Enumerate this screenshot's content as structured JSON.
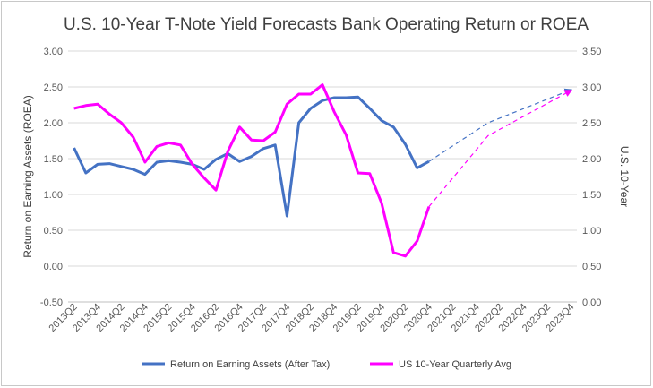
{
  "chart_data": {
    "type": "line",
    "title": "U.S. 10-Year T-Note Yield Forecasts Bank Operating Return or ROEA",
    "ylabel_left": "Return on Earning Assets (ROEA)",
    "ylabel_right": "U.S. 10-Year",
    "ylim_left": [
      -0.5,
      3.0
    ],
    "ylim_right": [
      0.0,
      3.5
    ],
    "yticks_left": [
      "3.00",
      "2.50",
      "2.00",
      "1.50",
      "1.00",
      "0.50",
      "0.00",
      "-0.50"
    ],
    "yticks_right": [
      "3.50",
      "3.00",
      "2.50",
      "2.00",
      "1.50",
      "1.00",
      "0.50",
      "0.00"
    ],
    "ytick_values_left": [
      3.0,
      2.5,
      2.0,
      1.5,
      1.0,
      0.5,
      0.0,
      -0.5
    ],
    "ytick_values_right": [
      3.5,
      3.0,
      2.5,
      2.0,
      1.5,
      1.0,
      0.5,
      0.0
    ],
    "x_labels": [
      "2013Q2",
      "2013Q4",
      "2014Q2",
      "2014Q4",
      "2015Q2",
      "2015Q4",
      "2016Q2",
      "2016Q4",
      "2017Q2",
      "2017Q4",
      "2018Q2",
      "2018Q4",
      "2019Q2",
      "2019Q4",
      "2020Q2",
      "2020Q4",
      "2021Q2",
      "2021Q4",
      "2022Q2",
      "2022Q4",
      "2023Q2",
      "2023Q4"
    ],
    "x_quarters": [
      "2013Q2",
      "2013Q3",
      "2013Q4",
      "2014Q1",
      "2014Q2",
      "2014Q3",
      "2014Q4",
      "2015Q1",
      "2015Q2",
      "2015Q3",
      "2015Q4",
      "2016Q1",
      "2016Q2",
      "2016Q3",
      "2016Q4",
      "2017Q1",
      "2017Q2",
      "2017Q3",
      "2017Q4",
      "2018Q1",
      "2018Q2",
      "2018Q3",
      "2018Q4",
      "2019Q1",
      "2019Q2",
      "2019Q3",
      "2019Q4",
      "2020Q1",
      "2020Q2",
      "2020Q3",
      "2020Q4",
      "2021Q1",
      "2021Q2",
      "2021Q3",
      "2021Q4",
      "2022Q1",
      "2022Q2",
      "2022Q3",
      "2022Q4",
      "2023Q1",
      "2023Q2",
      "2023Q3",
      "2023Q4"
    ],
    "legend_position": "bottom",
    "grid": true,
    "series": [
      {
        "name": "Return on Earning Assets (After Tax)",
        "axis": "left",
        "color": "#4472c4",
        "values": [
          1.65,
          1.3,
          1.42,
          1.43,
          1.39,
          1.35,
          1.28,
          1.45,
          1.47,
          1.45,
          1.42,
          1.35,
          1.49,
          1.57,
          1.46,
          1.53,
          1.64,
          1.69,
          0.7,
          2.0,
          2.2,
          2.31,
          2.35,
          2.35,
          2.36,
          2.2,
          2.03,
          1.94,
          1.7,
          1.37,
          1.46
        ]
      },
      {
        "name": "US 10-Year Quarterly Avg",
        "axis": "right",
        "color": "#ff00ff",
        "values": [
          2.7,
          2.74,
          2.76,
          2.62,
          2.5,
          2.3,
          1.95,
          2.17,
          2.22,
          2.19,
          1.92,
          1.73,
          1.56,
          2.1,
          2.44,
          2.26,
          2.25,
          2.37,
          2.76,
          2.9,
          2.9,
          3.03,
          2.65,
          2.33,
          1.8,
          1.79,
          1.38,
          0.69,
          0.64,
          0.85,
          1.33
        ]
      }
    ],
    "forecast": [
      {
        "series": "Return on Earning Assets (After Tax)",
        "axis": "left",
        "color": "#4472c4",
        "start_quarter": "2020Q4",
        "start_value": 1.46,
        "end_quarter": "2023Q4",
        "end_value": 2.46,
        "points": [
          {
            "quarter": "2022Q1",
            "value": 2.0
          }
        ]
      },
      {
        "series": "US 10-Year Quarterly Avg",
        "axis": "right",
        "color": "#ff00ff",
        "start_quarter": "2020Q4",
        "start_value": 1.33,
        "end_quarter": "2023Q4",
        "end_value": 2.95,
        "points": [
          {
            "quarter": "2022Q1",
            "value": 2.32
          }
        ]
      }
    ]
  }
}
